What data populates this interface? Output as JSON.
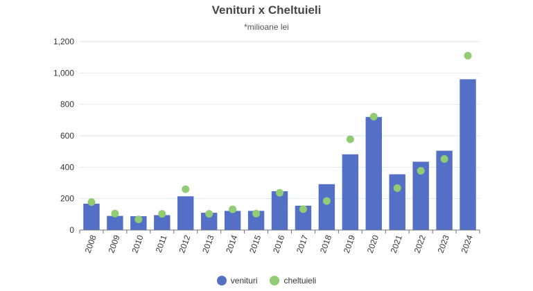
{
  "chart_data": {
    "type": "bar",
    "title": "Venituri x Cheltuieli",
    "subtitle": "*milioane lei",
    "categories": [
      "2008",
      "2009",
      "2010",
      "2011",
      "2012",
      "2013",
      "2014",
      "2015",
      "2016",
      "2017",
      "2018",
      "2019",
      "2020",
      "2021",
      "2022",
      "2023",
      "2024"
    ],
    "series": [
      {
        "name": "venituri",
        "kind": "bar",
        "color": "#5470c6",
        "values": [
          168,
          90,
          88,
          95,
          215,
          110,
          122,
          122,
          247,
          155,
          292,
          482,
          720,
          355,
          435,
          505,
          960
        ]
      },
      {
        "name": "cheltuieli",
        "kind": "scatter",
        "color": "#91cc75",
        "values": [
          178,
          105,
          68,
          103,
          260,
          103,
          132,
          105,
          237,
          133,
          185,
          578,
          722,
          267,
          377,
          452,
          1110
        ]
      }
    ],
    "yticks": [
      "0",
      "200",
      "400",
      "600",
      "800",
      "1,000",
      "1,200"
    ],
    "ylim": [
      0,
      1200
    ],
    "grid": true,
    "legend_position": "bottom-center"
  }
}
